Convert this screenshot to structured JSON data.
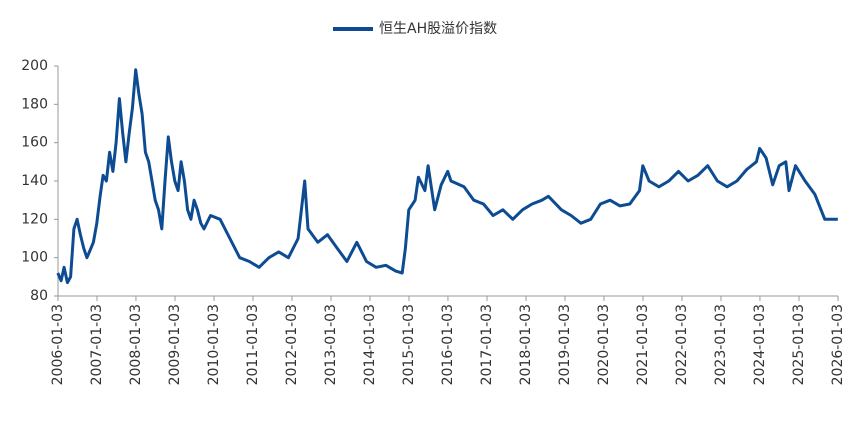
{
  "chart_data": {
    "type": "line",
    "x": [
      "2006-01",
      "2006-02",
      "2006-03",
      "2006-04",
      "2006-05",
      "2006-06",
      "2006-07",
      "2006-08",
      "2006-09",
      "2006-10",
      "2006-11",
      "2006-12",
      "2007-01",
      "2007-02",
      "2007-03",
      "2007-04",
      "2007-05",
      "2007-06",
      "2007-07",
      "2007-08",
      "2007-09",
      "2007-10",
      "2007-11",
      "2007-12",
      "2008-01",
      "2008-02",
      "2008-03",
      "2008-04",
      "2008-05",
      "2008-06",
      "2008-07",
      "2008-08",
      "2008-09",
      "2008-10",
      "2008-11",
      "2008-12",
      "2009-01",
      "2009-02",
      "2009-03",
      "2009-04",
      "2009-05",
      "2009-06",
      "2009-07",
      "2009-08",
      "2009-09",
      "2009-10",
      "2009-12",
      "2010-03",
      "2010-06",
      "2010-09",
      "2010-12",
      "2011-03",
      "2011-06",
      "2011-09",
      "2011-12",
      "2012-03",
      "2012-05",
      "2012-06",
      "2012-09",
      "2012-12",
      "2013-03",
      "2013-06",
      "2013-09",
      "2013-12",
      "2014-03",
      "2014-06",
      "2014-09",
      "2014-11",
      "2014-12",
      "2015-01",
      "2015-03",
      "2015-04",
      "2015-06",
      "2015-07",
      "2015-09",
      "2015-11",
      "2016-01",
      "2016-02",
      "2016-06",
      "2016-09",
      "2016-12",
      "2017-03",
      "2017-06",
      "2017-09",
      "2017-12",
      "2018-03",
      "2018-06",
      "2018-08",
      "2018-12",
      "2019-03",
      "2019-06",
      "2019-09",
      "2019-12",
      "2020-03",
      "2020-06",
      "2020-09",
      "2020-12",
      "2021-01",
      "2021-03",
      "2021-06",
      "2021-09",
      "2021-12",
      "2022-03",
      "2022-06",
      "2022-09",
      "2022-12",
      "2023-03",
      "2023-06",
      "2023-09",
      "2023-12",
      "2024-01",
      "2024-03",
      "2024-05",
      "2024-07",
      "2024-09",
      "2024-10",
      "2024-12",
      "2025-03",
      "2025-06",
      "2025-09",
      "2025-12",
      "2026-01"
    ],
    "series": [
      {
        "name": "恒生AH股溢价指数",
        "color": "#0d4c92",
        "values": [
          92,
          88,
          95,
          87,
          90,
          115,
          120,
          112,
          105,
          100,
          104,
          108,
          118,
          132,
          143,
          140,
          155,
          145,
          160,
          183,
          165,
          150,
          165,
          178,
          198,
          185,
          175,
          155,
          150,
          140,
          130,
          125,
          115,
          140,
          163,
          150,
          140,
          135,
          150,
          140,
          125,
          120,
          130,
          125,
          118,
          115,
          122,
          120,
          110,
          100,
          98,
          95,
          100,
          103,
          100,
          110,
          140,
          115,
          108,
          112,
          105,
          98,
          108,
          98,
          95,
          96,
          93,
          92,
          105,
          125,
          130,
          142,
          135,
          148,
          125,
          138,
          145,
          140,
          137,
          130,
          128,
          122,
          125,
          120,
          125,
          128,
          130,
          132,
          125,
          122,
          118,
          120,
          128,
          130,
          127,
          128,
          135,
          148,
          140,
          137,
          140,
          145,
          140,
          143,
          148,
          140,
          137,
          140,
          146,
          150,
          157,
          152,
          138,
          148,
          150,
          135,
          148,
          140,
          133,
          120,
          120,
          120
        ]
      }
    ],
    "xlim": [
      "2006-01-03",
      "2026-01-03"
    ],
    "xticks": [
      "2006-01-03",
      "2007-01-03",
      "2008-01-03",
      "2009-01-03",
      "2010-01-03",
      "2011-01-03",
      "2012-01-03",
      "2013-01-03",
      "2014-01-03",
      "2015-01-03",
      "2016-01-03",
      "2017-01-03",
      "2018-01-03",
      "2019-01-03",
      "2020-01-03",
      "2021-01-03",
      "2022-01-03",
      "2023-01-03",
      "2024-01-03",
      "2025-01-03",
      "2026-01-03"
    ],
    "ylim": [
      80,
      200
    ],
    "yticks": [
      80,
      100,
      120,
      140,
      160,
      180,
      200
    ],
    "grid": false,
    "legend": "top"
  }
}
